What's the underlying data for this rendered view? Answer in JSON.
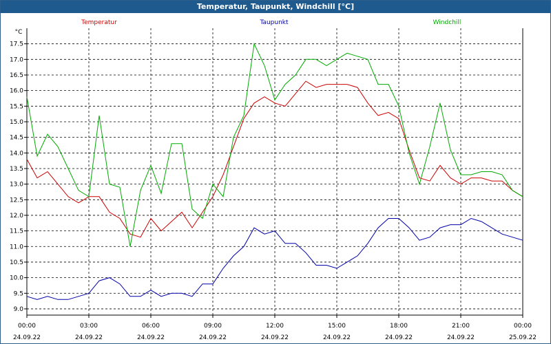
{
  "window": {
    "title": "Temperatur, Taupunkt, Windchill [°C]"
  },
  "chart_data": {
    "type": "line",
    "title": "Temperatur, Taupunkt, Windchill [°C]",
    "ylabel": "°C",
    "xlabel": "",
    "ylim": [
      8.8,
      18.0
    ],
    "xlim": [
      0,
      24
    ],
    "yticks": [
      9.0,
      9.5,
      10.0,
      10.5,
      11.0,
      11.5,
      12.0,
      12.5,
      13.0,
      13.5,
      14.0,
      14.5,
      15.0,
      15.5,
      16.0,
      16.5,
      17.0,
      17.5
    ],
    "xticks": [
      {
        "hour": 0,
        "time": "00:00",
        "date": "24.09.22"
      },
      {
        "hour": 3,
        "time": "03:00",
        "date": "24.09.22"
      },
      {
        "hour": 6,
        "time": "06:00",
        "date": "24.09.22"
      },
      {
        "hour": 9,
        "time": "09:00",
        "date": "24.09.22"
      },
      {
        "hour": 12,
        "time": "12:00",
        "date": "24.09.22"
      },
      {
        "hour": 15,
        "time": "15:00",
        "date": "24.09.22"
      },
      {
        "hour": 18,
        "time": "18:00",
        "date": "24.09.22"
      },
      {
        "hour": 21,
        "time": "21:00",
        "date": "24.09.22"
      },
      {
        "hour": 24,
        "time": "00:00",
        "date": "25.09.22"
      }
    ],
    "grid": true,
    "legend_position": "top",
    "series": [
      {
        "name": "Temperatur",
        "color": "#cc0000",
        "x": [
          0,
          0.5,
          1,
          1.5,
          2,
          2.5,
          3,
          3.5,
          4,
          4.5,
          5,
          5.5,
          6,
          6.5,
          7,
          7.5,
          8,
          8.5,
          9,
          9.5,
          10,
          10.5,
          11,
          11.5,
          12,
          12.5,
          13,
          13.5,
          14,
          14.5,
          15,
          15.5,
          16,
          16.5,
          17,
          17.5,
          18,
          18.5,
          19,
          19.5,
          20,
          20.5,
          21,
          21.5,
          22,
          22.5,
          23,
          23.5,
          24
        ],
        "values": [
          13.8,
          13.2,
          13.4,
          13.0,
          12.6,
          12.4,
          12.6,
          12.6,
          12.1,
          11.9,
          11.4,
          11.3,
          11.9,
          11.5,
          11.8,
          12.1,
          11.6,
          12.1,
          12.6,
          13.3,
          14.2,
          15.1,
          15.6,
          15.8,
          15.6,
          15.5,
          15.9,
          16.3,
          16.1,
          16.2,
          16.2,
          16.2,
          16.1,
          15.6,
          15.2,
          15.3,
          15.1,
          14.1,
          13.2,
          13.1,
          13.6,
          13.2,
          13.0,
          13.2,
          13.2,
          13.1,
          13.1,
          12.8,
          12.6
        ]
      },
      {
        "name": "Taupunkt",
        "color": "#0000aa",
        "x": [
          0,
          0.5,
          1,
          1.5,
          2,
          2.5,
          3,
          3.5,
          4,
          4.5,
          5,
          5.5,
          6,
          6.5,
          7,
          7.5,
          8,
          8.5,
          9,
          9.5,
          10,
          10.5,
          11,
          11.5,
          12,
          12.5,
          13,
          13.5,
          14,
          14.5,
          15,
          15.5,
          16,
          16.5,
          17,
          17.5,
          18,
          18.5,
          19,
          19.5,
          20,
          20.5,
          21,
          21.5,
          22,
          22.5,
          23,
          23.5,
          24
        ],
        "values": [
          9.4,
          9.3,
          9.4,
          9.3,
          9.3,
          9.4,
          9.5,
          9.9,
          10.0,
          9.8,
          9.4,
          9.4,
          9.6,
          9.4,
          9.5,
          9.5,
          9.4,
          9.8,
          9.8,
          10.3,
          10.7,
          11.0,
          11.6,
          11.4,
          11.5,
          11.1,
          11.1,
          10.8,
          10.4,
          10.4,
          10.3,
          10.5,
          10.7,
          11.1,
          11.6,
          11.9,
          11.9,
          11.6,
          11.2,
          11.3,
          11.6,
          11.7,
          11.7,
          11.9,
          11.8,
          11.6,
          11.4,
          11.3,
          11.2
        ]
      },
      {
        "name": "Windchill",
        "color": "#00aa00",
        "x": [
          0,
          0.5,
          1,
          1.5,
          2,
          2.5,
          3,
          3.5,
          4,
          4.5,
          5,
          5.5,
          6,
          6.5,
          7,
          7.5,
          8,
          8.5,
          9,
          9.5,
          10,
          10.5,
          11,
          11.5,
          12,
          12.5,
          13,
          13.5,
          14,
          14.5,
          15,
          15.5,
          16,
          16.5,
          17,
          17.5,
          18,
          18.5,
          19,
          19.5,
          20,
          20.5,
          21,
          21.5,
          22,
          22.5,
          23,
          23.5,
          24
        ],
        "values": [
          15.8,
          13.9,
          14.6,
          14.2,
          13.5,
          12.8,
          12.6,
          15.2,
          13.0,
          12.9,
          11.0,
          12.8,
          13.6,
          12.7,
          14.3,
          14.3,
          12.2,
          11.9,
          13.0,
          12.6,
          14.5,
          15.2,
          17.5,
          16.8,
          15.7,
          16.2,
          16.5,
          17.0,
          17.0,
          16.8,
          17.0,
          17.2,
          17.1,
          17.0,
          16.2,
          16.2,
          15.5,
          14.0,
          13.0,
          14.2,
          15.6,
          14.1,
          13.3,
          13.3,
          13.4,
          13.4,
          13.3,
          12.8,
          12.6
        ]
      }
    ]
  }
}
